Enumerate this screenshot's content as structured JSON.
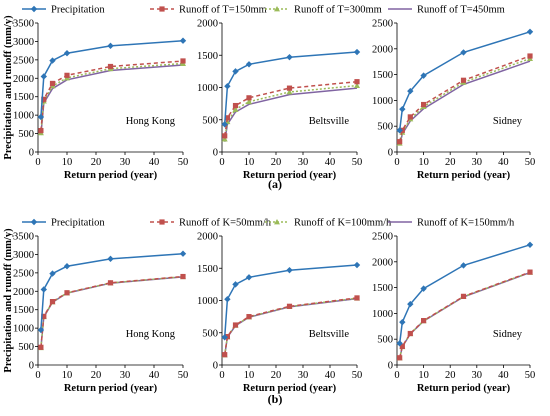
{
  "panel_labels": [
    "(a)",
    "(b)"
  ],
  "colors": {
    "precip": "#2E75B6",
    "r1": "#C0504D",
    "r2": "#9BBB59",
    "r3": "#8064A2"
  },
  "chart_data": [
    {
      "type": "line",
      "panel": "(a)",
      "location": "Hong Kong",
      "xlabel": "Return period (year)",
      "ylabel": "Precipitation and runoff (mm/y)",
      "xlim": [
        0,
        50
      ],
      "xticks": [
        0,
        10,
        20,
        30,
        40,
        50
      ],
      "ylim": [
        0,
        3500
      ],
      "yticks": [
        0,
        500,
        1000,
        1500,
        2000,
        2500,
        3000,
        3500
      ],
      "x": [
        1,
        2,
        5,
        10,
        25,
        50
      ],
      "series": [
        {
          "name": "Precipitation",
          "values": [
            950,
            2050,
            2480,
            2680,
            2880,
            3020
          ]
        },
        {
          "name": "Runoff of T=150mm",
          "values": [
            580,
            1430,
            1860,
            2080,
            2320,
            2470
          ]
        },
        {
          "name": "Runoff of T=300mm",
          "values": [
            520,
            1380,
            1790,
            2010,
            2260,
            2400
          ]
        },
        {
          "name": "Runoff of T=450mm",
          "values": [
            460,
            1330,
            1720,
            1960,
            2210,
            2360
          ]
        }
      ]
    },
    {
      "type": "line",
      "panel": "(a)",
      "location": "Beltsville",
      "xlabel": "Return period (year)",
      "ylabel": "",
      "xlim": [
        0,
        50
      ],
      "xticks": [
        0,
        10,
        20,
        30,
        40,
        50
      ],
      "ylim": [
        0,
        2000
      ],
      "yticks": [
        0,
        500,
        1000,
        1500,
        2000
      ],
      "x": [
        1,
        2,
        5,
        10,
        25,
        50
      ],
      "series": [
        {
          "name": "Precipitation",
          "values": [
            430,
            1020,
            1250,
            1360,
            1470,
            1550
          ]
        },
        {
          "name": "Runoff of T=150mm",
          "values": [
            250,
            530,
            720,
            840,
            990,
            1090
          ]
        },
        {
          "name": "Runoff of T=300mm",
          "values": [
            200,
            470,
            660,
            780,
            930,
            1030
          ]
        },
        {
          "name": "Runoff of T=450mm",
          "values": [
            160,
            430,
            620,
            740,
            890,
            990
          ]
        }
      ]
    },
    {
      "type": "line",
      "panel": "(a)",
      "location": "Sidney",
      "xlabel": "Return period (year)",
      "ylabel": "",
      "xlim": [
        0,
        50
      ],
      "xticks": [
        0,
        10,
        20,
        30,
        40,
        50
      ],
      "ylim": [
        0,
        2500
      ],
      "yticks": [
        0,
        500,
        1000,
        1500,
        2000,
        2500
      ],
      "x": [
        1,
        2,
        5,
        10,
        25,
        50
      ],
      "series": [
        {
          "name": "Precipitation",
          "values": [
            420,
            830,
            1180,
            1480,
            1930,
            2330
          ]
        },
        {
          "name": "Runoff of T=150mm",
          "values": [
            200,
            420,
            680,
            920,
            1390,
            1860
          ]
        },
        {
          "name": "Runoff of T=300mm",
          "values": [
            170,
            380,
            640,
            880,
            1350,
            1810
          ]
        },
        {
          "name": "Runoff of T=450mm",
          "values": [
            130,
            350,
            600,
            840,
            1310,
            1760
          ]
        }
      ]
    },
    {
      "type": "line",
      "panel": "(b)",
      "location": "Hong Kong",
      "xlabel": "Return period (year)",
      "ylabel": "Precipitation and runoff (mm/y)",
      "xlim": [
        0,
        50
      ],
      "xticks": [
        0,
        10,
        20,
        30,
        40,
        50
      ],
      "ylim": [
        0,
        3500
      ],
      "yticks": [
        0,
        500,
        1000,
        1500,
        2000,
        2500,
        3000,
        3500
      ],
      "x": [
        1,
        2,
        5,
        10,
        25,
        50
      ],
      "series": [
        {
          "name": "Precipitation",
          "values": [
            950,
            2050,
            2480,
            2680,
            2880,
            3020
          ]
        },
        {
          "name": "Runoff of K=50mm/h",
          "values": [
            480,
            1320,
            1720,
            1960,
            2230,
            2400
          ]
        },
        {
          "name": "Runoff of K=100mm/h",
          "values": [
            470,
            1310,
            1710,
            1955,
            2225,
            2395
          ]
        },
        {
          "name": "Runoff of K=150mm/h",
          "values": [
            460,
            1300,
            1700,
            1950,
            2220,
            2390
          ]
        }
      ]
    },
    {
      "type": "line",
      "panel": "(b)",
      "location": "Beltsville",
      "xlabel": "Return period (year)",
      "ylabel": "",
      "xlim": [
        0,
        50
      ],
      "xticks": [
        0,
        10,
        20,
        30,
        40,
        50
      ],
      "ylim": [
        0,
        2000
      ],
      "yticks": [
        0,
        500,
        1000,
        1500,
        2000
      ],
      "x": [
        1,
        2,
        5,
        10,
        25,
        50
      ],
      "series": [
        {
          "name": "Precipitation",
          "values": [
            430,
            1020,
            1250,
            1360,
            1470,
            1550
          ]
        },
        {
          "name": "Runoff of K=50mm/h",
          "values": [
            160,
            440,
            620,
            750,
            910,
            1040
          ]
        },
        {
          "name": "Runoff of K=100mm/h",
          "values": [
            155,
            435,
            615,
            745,
            905,
            1035
          ]
        },
        {
          "name": "Runoff of K=150mm/h",
          "values": [
            150,
            430,
            610,
            740,
            900,
            1030
          ]
        }
      ]
    },
    {
      "type": "line",
      "panel": "(b)",
      "location": "Sidney",
      "xlabel": "Return period (year)",
      "ylabel": "",
      "xlim": [
        0,
        50
      ],
      "xticks": [
        0,
        10,
        20,
        30,
        40,
        50
      ],
      "ylim": [
        0,
        2500
      ],
      "yticks": [
        0,
        500,
        1000,
        1500,
        2000,
        2500
      ],
      "x": [
        1,
        2,
        5,
        10,
        25,
        50
      ],
      "series": [
        {
          "name": "Precipitation",
          "values": [
            420,
            830,
            1180,
            1480,
            1930,
            2330
          ]
        },
        {
          "name": "Runoff of K=50mm/h",
          "values": [
            140,
            360,
            610,
            860,
            1330,
            1800
          ]
        },
        {
          "name": "Runoff of K=100mm/h",
          "values": [
            135,
            355,
            605,
            855,
            1325,
            1795
          ]
        },
        {
          "name": "Runoff of K=150mm/h",
          "values": [
            130,
            350,
            600,
            850,
            1320,
            1790
          ]
        }
      ]
    }
  ]
}
